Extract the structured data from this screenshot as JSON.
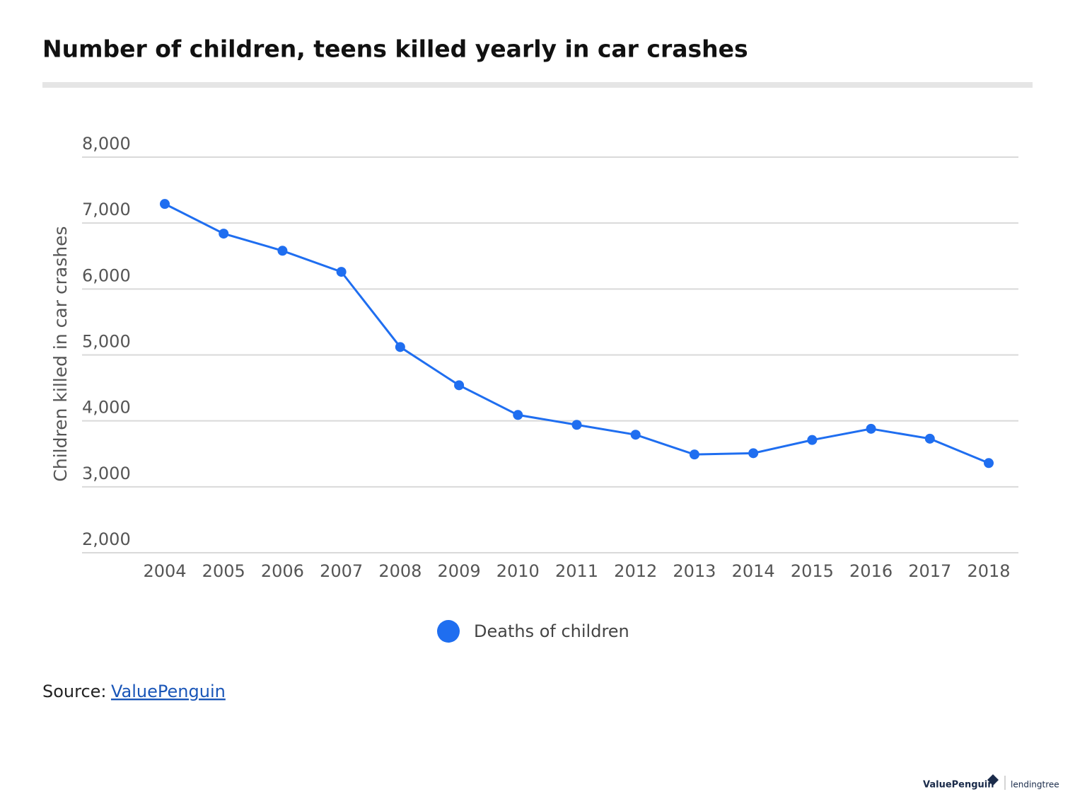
{
  "chart_data": {
    "type": "line",
    "title": "Number of children, teens killed yearly in car crashes",
    "y_label": "Children killed in car crashes",
    "categories": [
      "2004",
      "2005",
      "2006",
      "2007",
      "2008",
      "2009",
      "2010",
      "2011",
      "2012",
      "2013",
      "2014",
      "2015",
      "2016",
      "2017",
      "2018"
    ],
    "series": [
      {
        "name": "Deaths of children",
        "color": "#1f6ef0",
        "values": [
          7290,
          6840,
          6580,
          6260,
          5120,
          4540,
          4090,
          3940,
          3790,
          3490,
          3510,
          3710,
          3880,
          3730,
          3360
        ]
      }
    ],
    "ylim": [
      2000,
      8000
    ],
    "yticks": [
      {
        "value": 2000,
        "label": "2,000"
      },
      {
        "value": 3000,
        "label": "3,000"
      },
      {
        "value": 4000,
        "label": "4,000"
      },
      {
        "value": 5000,
        "label": "5,000"
      },
      {
        "value": 6000,
        "label": "6,000"
      },
      {
        "value": 7000,
        "label": "7,000"
      },
      {
        "value": 8000,
        "label": "8,000"
      }
    ],
    "grid": true
  },
  "source": {
    "label": "Source:",
    "link": "ValuePenguin"
  },
  "brand": {
    "left": "ValuePenguin",
    "right": "lendingtree"
  }
}
